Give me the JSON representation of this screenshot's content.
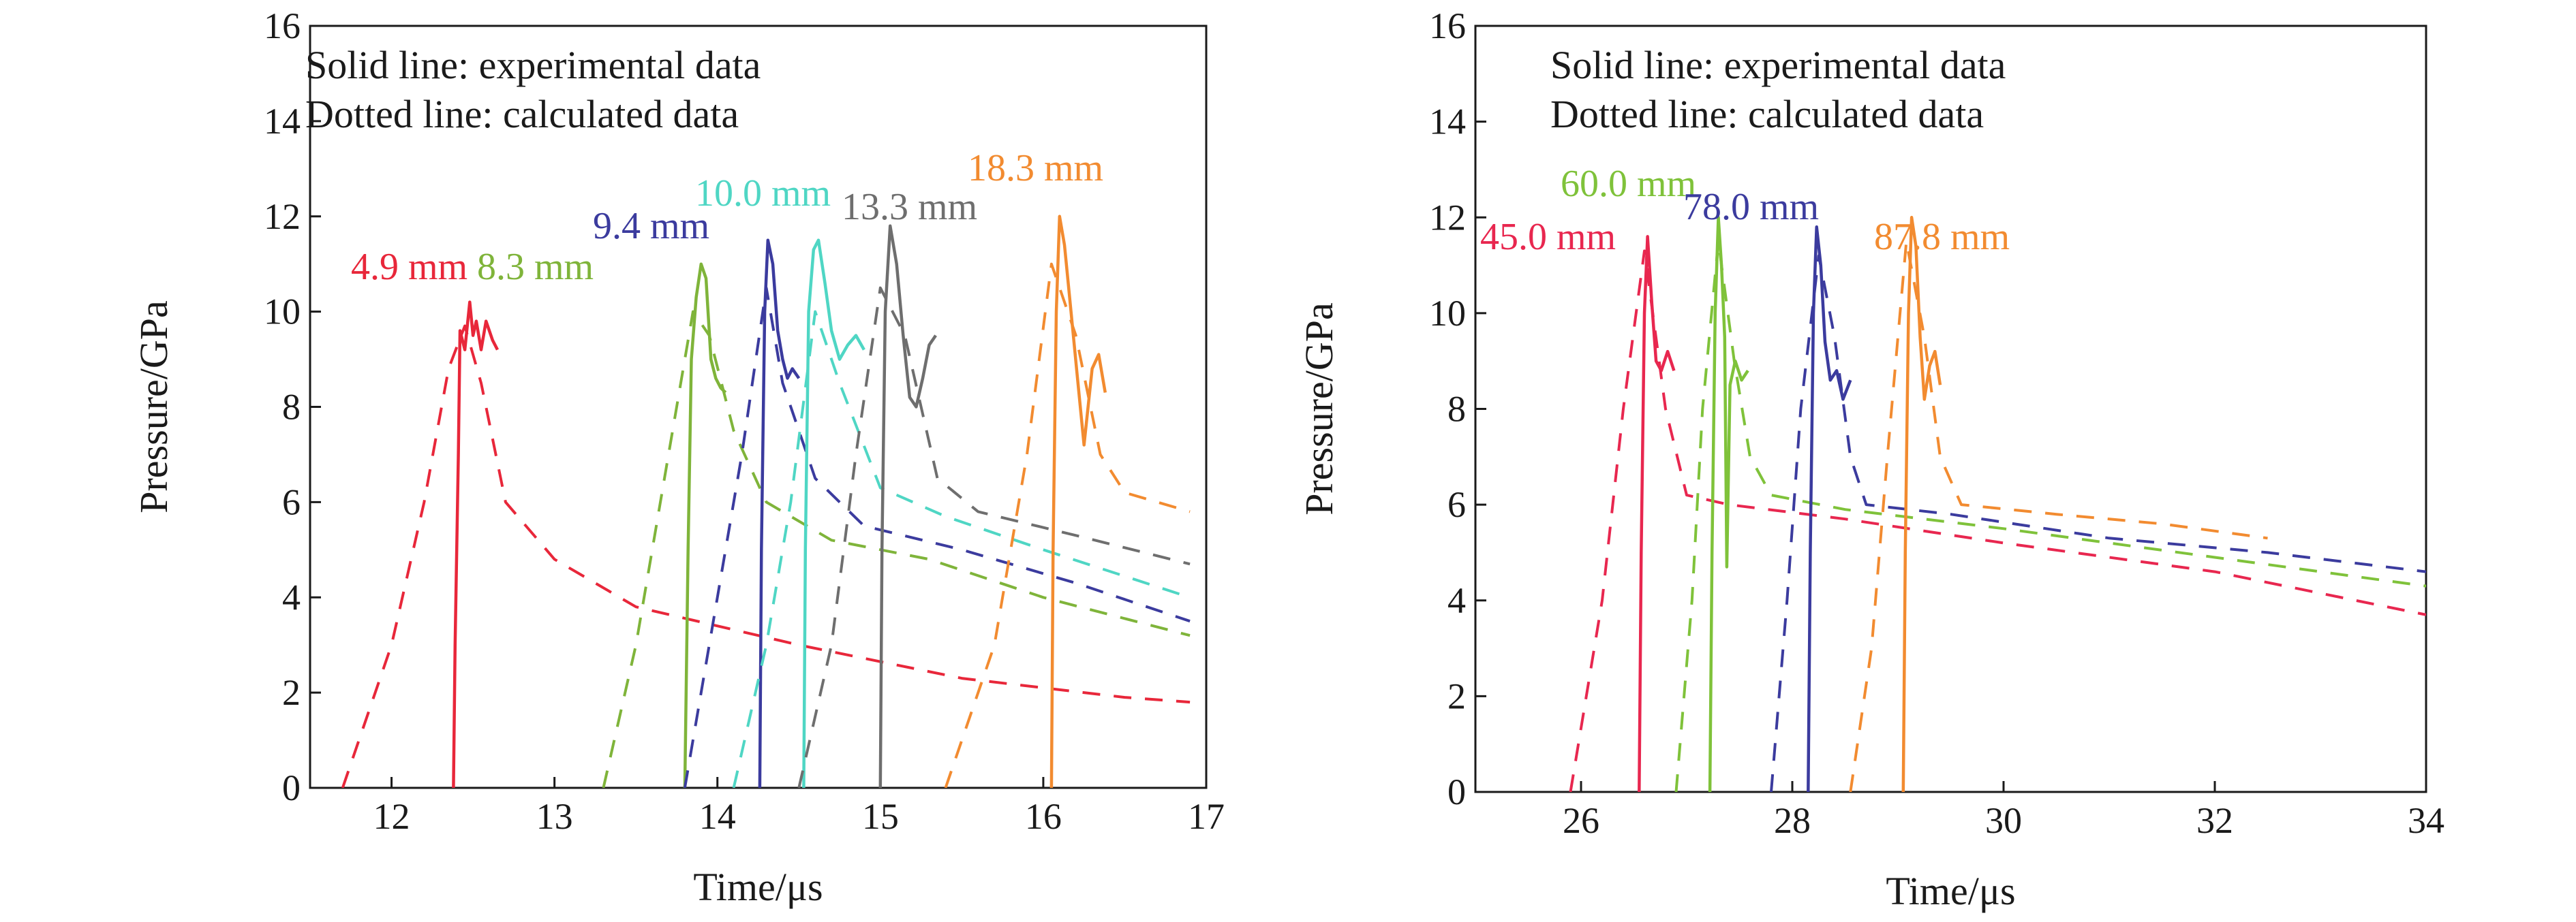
{
  "chart_data": [
    {
      "type": "line",
      "xlabel": "Time/μs",
      "ylabel": "Pressure/GPa",
      "xlim": [
        11.5,
        17
      ],
      "ylim": [
        0,
        16
      ],
      "xticks": [
        "12",
        "13",
        "14",
        "15",
        "16",
        "17"
      ],
      "yticks": [
        "0",
        "2",
        "4",
        "6",
        "8",
        "10",
        "12",
        "14",
        "16"
      ],
      "notes": [
        "Solid line: experimental data",
        "Dotted line: calculated data"
      ],
      "grid": false,
      "series": [
        {
          "name": "4.9 mm",
          "color": "#e8273a",
          "experimental": [
            [
              12.38,
              0
            ],
            [
              12.39,
              3
            ],
            [
              12.41,
              7
            ],
            [
              12.42,
              9.6
            ],
            [
              12.45,
              9.2
            ],
            [
              12.48,
              10.2
            ],
            [
              12.5,
              9.5
            ],
            [
              12.52,
              9.8
            ],
            [
              12.55,
              9.2
            ],
            [
              12.58,
              9.8
            ],
            [
              12.62,
              9.4
            ],
            [
              12.65,
              9.2
            ]
          ],
          "calculated": [
            [
              11.7,
              0
            ],
            [
              12.0,
              3
            ],
            [
              12.2,
              6
            ],
            [
              12.35,
              8.8
            ],
            [
              12.45,
              9.7
            ],
            [
              12.55,
              8.5
            ],
            [
              12.7,
              6.0
            ],
            [
              13.0,
              4.8
            ],
            [
              13.5,
              3.8
            ],
            [
              14.5,
              3.0
            ],
            [
              15.5,
              2.3
            ],
            [
              16.5,
              1.9
            ],
            [
              16.9,
              1.8
            ]
          ]
        },
        {
          "name": "8.3 mm",
          "color": "#7fb43a",
          "experimental": [
            [
              13.8,
              0
            ],
            [
              13.82,
              5
            ],
            [
              13.84,
              9
            ],
            [
              13.87,
              10.3
            ],
            [
              13.9,
              11.0
            ],
            [
              13.93,
              10.7
            ],
            [
              13.96,
              9.0
            ],
            [
              13.99,
              8.6
            ],
            [
              14.02,
              8.4
            ],
            [
              14.05,
              8.3
            ]
          ],
          "calculated": [
            [
              13.3,
              0
            ],
            [
              13.5,
              3
            ],
            [
              13.7,
              7
            ],
            [
              13.85,
              10
            ],
            [
              13.95,
              9.5
            ],
            [
              14.1,
              7.5
            ],
            [
              14.3,
              6.0
            ],
            [
              14.7,
              5.2
            ],
            [
              15.3,
              4.8
            ],
            [
              16.0,
              4.0
            ],
            [
              16.9,
              3.2
            ]
          ]
        },
        {
          "name": "9.4 mm",
          "color": "#3b3b9e",
          "experimental": [
            [
              14.26,
              0
            ],
            [
              14.27,
              5
            ],
            [
              14.29,
              10
            ],
            [
              14.31,
              11.5
            ],
            [
              14.34,
              11.0
            ],
            [
              14.37,
              9.6
            ],
            [
              14.4,
              9.0
            ],
            [
              14.43,
              8.6
            ],
            [
              14.46,
              8.8
            ],
            [
              14.5,
              8.6
            ]
          ],
          "calculated": [
            [
              13.8,
              0
            ],
            [
              14.0,
              4
            ],
            [
              14.15,
              7
            ],
            [
              14.3,
              10.5
            ],
            [
              14.4,
              8.5
            ],
            [
              14.6,
              6.5
            ],
            [
              14.9,
              5.5
            ],
            [
              15.5,
              5.0
            ],
            [
              16.2,
              4.3
            ],
            [
              16.9,
              3.5
            ]
          ]
        },
        {
          "name": "10.0 mm",
          "color": "#4fd6c4",
          "experimental": [
            [
              14.53,
              0
            ],
            [
              14.54,
              5
            ],
            [
              14.56,
              10
            ],
            [
              14.59,
              11.3
            ],
            [
              14.62,
              11.5
            ],
            [
              14.66,
              10.6
            ],
            [
              14.7,
              9.6
            ],
            [
              14.75,
              9.0
            ],
            [
              14.8,
              9.3
            ],
            [
              14.85,
              9.5
            ],
            [
              14.9,
              9.2
            ]
          ],
          "calculated": [
            [
              14.1,
              0
            ],
            [
              14.3,
              3
            ],
            [
              14.45,
              6
            ],
            [
              14.6,
              10
            ],
            [
              14.75,
              8.5
            ],
            [
              15.0,
              6.3
            ],
            [
              15.4,
              5.7
            ],
            [
              16.0,
              5.0
            ],
            [
              16.9,
              4.0
            ]
          ]
        },
        {
          "name": "13.3 mm",
          "color": "#6e6e6e",
          "experimental": [
            [
              15.0,
              0
            ],
            [
              15.01,
              5
            ],
            [
              15.03,
              10
            ],
            [
              15.06,
              11.8
            ],
            [
              15.1,
              11.0
            ],
            [
              15.14,
              9.5
            ],
            [
              15.18,
              8.2
            ],
            [
              15.22,
              8.0
            ],
            [
              15.26,
              8.6
            ],
            [
              15.3,
              9.3
            ],
            [
              15.34,
              9.5
            ]
          ],
          "calculated": [
            [
              14.5,
              0
            ],
            [
              14.7,
              3
            ],
            [
              14.85,
              7
            ],
            [
              15.0,
              10.5
            ],
            [
              15.15,
              9.5
            ],
            [
              15.35,
              6.5
            ],
            [
              15.6,
              5.8
            ],
            [
              16.2,
              5.3
            ],
            [
              16.9,
              4.7
            ]
          ]
        },
        {
          "name": "18.3 mm",
          "color": "#f28b30",
          "experimental": [
            [
              16.05,
              0
            ],
            [
              16.06,
              5
            ],
            [
              16.08,
              10
            ],
            [
              16.1,
              12.0
            ],
            [
              16.13,
              11.4
            ],
            [
              16.17,
              10.0
            ],
            [
              16.21,
              8.6
            ],
            [
              16.25,
              7.2
            ],
            [
              16.3,
              8.8
            ],
            [
              16.34,
              9.1
            ],
            [
              16.38,
              8.3
            ]
          ],
          "calculated": [
            [
              15.4,
              0
            ],
            [
              15.7,
              3
            ],
            [
              15.9,
              7
            ],
            [
              16.05,
              11
            ],
            [
              16.2,
              9.5
            ],
            [
              16.35,
              7.0
            ],
            [
              16.5,
              6.2
            ],
            [
              16.9,
              5.8
            ]
          ]
        }
      ]
    },
    {
      "type": "line",
      "xlabel": "Time/μs",
      "ylabel": "Pressure/GPa",
      "xlim": [
        25,
        34
      ],
      "ylim": [
        0,
        16
      ],
      "xticks": [
        "26",
        "28",
        "30",
        "32",
        "34"
      ],
      "yticks": [
        "0",
        "2",
        "4",
        "6",
        "8",
        "10",
        "12",
        "14",
        "16"
      ],
      "notes": [
        "Solid line: experimental data",
        "Dotted line: calculated data"
      ],
      "grid": false,
      "series": [
        {
          "name": "45.0 mm",
          "color": "#e8274f",
          "experimental": [
            [
              26.55,
              0
            ],
            [
              26.57,
              5
            ],
            [
              26.6,
              10
            ],
            [
              26.63,
              11.6
            ],
            [
              26.67,
              10.2
            ],
            [
              26.71,
              9.0
            ],
            [
              26.76,
              8.8
            ],
            [
              26.82,
              9.2
            ],
            [
              26.88,
              8.8
            ]
          ],
          "calculated": [
            [
              25.9,
              0
            ],
            [
              26.2,
              4
            ],
            [
              26.4,
              8
            ],
            [
              26.6,
              11.3
            ],
            [
              26.8,
              8.0
            ],
            [
              27.0,
              6.2
            ],
            [
              27.4,
              6.0
            ],
            [
              28.5,
              5.7
            ],
            [
              30.0,
              5.2
            ],
            [
              32.0,
              4.6
            ],
            [
              34.0,
              3.7
            ]
          ]
        },
        {
          "name": "60.0 mm",
          "color": "#7fc23a",
          "experimental": [
            [
              27.22,
              0
            ],
            [
              27.24,
              5
            ],
            [
              27.27,
              10
            ],
            [
              27.3,
              12.0
            ],
            [
              27.33,
              11.0
            ],
            [
              27.36,
              9.5
            ],
            [
              27.38,
              4.7
            ],
            [
              27.41,
              8.5
            ],
            [
              27.46,
              9.0
            ],
            [
              27.52,
              8.6
            ],
            [
              27.58,
              8.8
            ]
          ],
          "calculated": [
            [
              26.9,
              0
            ],
            [
              27.05,
              4
            ],
            [
              27.15,
              8
            ],
            [
              27.3,
              11.5
            ],
            [
              27.45,
              9.0
            ],
            [
              27.6,
              7.0
            ],
            [
              27.8,
              6.2
            ],
            [
              28.5,
              5.9
            ],
            [
              30.0,
              5.5
            ],
            [
              32.0,
              4.9
            ],
            [
              34.0,
              4.3
            ]
          ]
        },
        {
          "name": "78.0 mm",
          "color": "#3b3b9e",
          "experimental": [
            [
              28.15,
              0
            ],
            [
              28.17,
              5
            ],
            [
              28.2,
              10
            ],
            [
              28.23,
              11.8
            ],
            [
              28.27,
              11.0
            ],
            [
              28.31,
              9.4
            ],
            [
              28.36,
              8.6
            ],
            [
              28.42,
              8.8
            ],
            [
              28.48,
              8.2
            ],
            [
              28.55,
              8.6
            ]
          ],
          "calculated": [
            [
              27.8,
              0
            ],
            [
              27.95,
              4
            ],
            [
              28.08,
              8
            ],
            [
              28.25,
              11.2
            ],
            [
              28.4,
              9.5
            ],
            [
              28.55,
              7.0
            ],
            [
              28.7,
              6.0
            ],
            [
              29.5,
              5.8
            ],
            [
              31.0,
              5.3
            ],
            [
              32.5,
              5.0
            ],
            [
              34.0,
              4.6
            ]
          ]
        },
        {
          "name": "87.8 mm",
          "color": "#f28b30",
          "experimental": [
            [
              29.05,
              0
            ],
            [
              29.07,
              5
            ],
            [
              29.1,
              10
            ],
            [
              29.13,
              12.0
            ],
            [
              29.17,
              11.4
            ],
            [
              29.21,
              9.5
            ],
            [
              29.25,
              8.2
            ],
            [
              29.3,
              8.9
            ],
            [
              29.35,
              9.2
            ],
            [
              29.4,
              8.5
            ]
          ],
          "calculated": [
            [
              28.55,
              0
            ],
            [
              28.75,
              3
            ],
            [
              28.9,
              7
            ],
            [
              29.08,
              11.5
            ],
            [
              29.25,
              9.5
            ],
            [
              29.4,
              7.0
            ],
            [
              29.6,
              6.0
            ],
            [
              30.5,
              5.8
            ],
            [
              31.5,
              5.6
            ],
            [
              32.5,
              5.3
            ]
          ]
        }
      ]
    }
  ]
}
